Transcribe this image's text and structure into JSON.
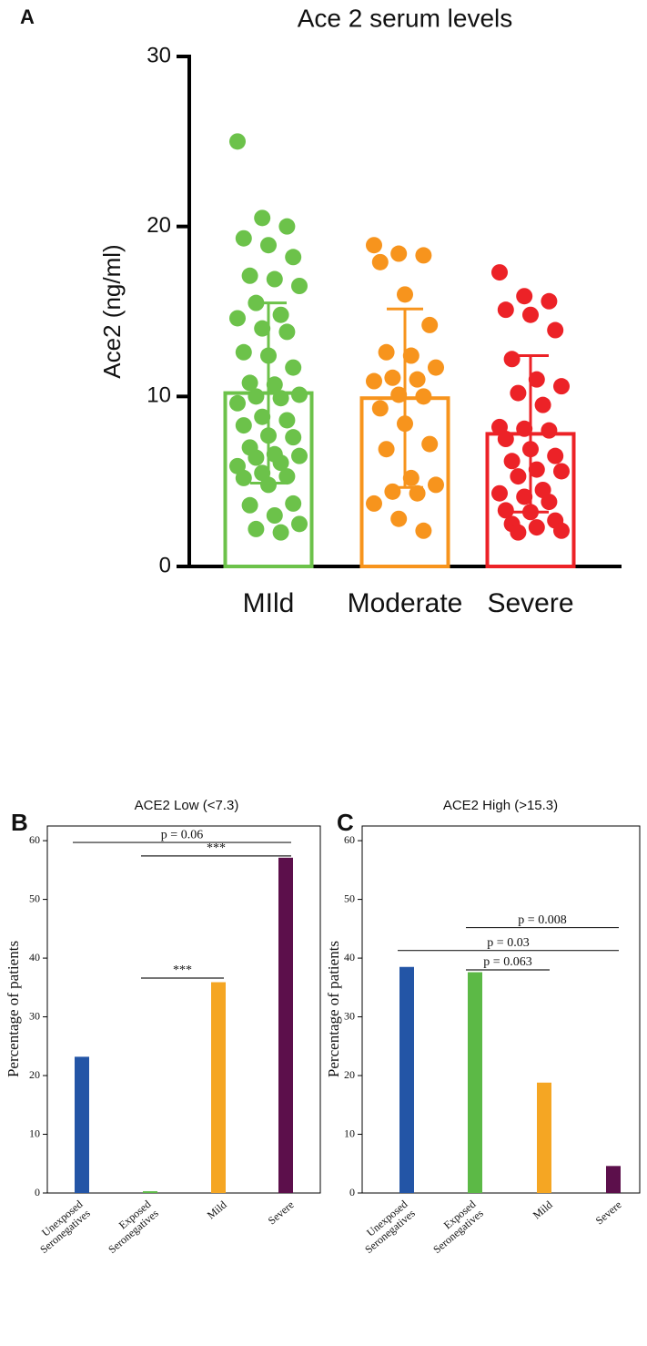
{
  "chart_data": [
    {
      "type": "bar",
      "panel_label": "A",
      "title": "Ace 2  serum levels",
      "ylabel": "Ace2  (ng/ml)",
      "categories": [
        "MIld",
        "Moderate",
        "Severe"
      ],
      "values": [
        10.2,
        9.9,
        7.8
      ],
      "errors": [
        5.3,
        5.25,
        4.6
      ],
      "colors": [
        "#6cc24a",
        "#f7941d",
        "#ec2227"
      ],
      "points": [
        [
          25,
          20.5,
          20,
          19.3,
          18.9,
          18.2,
          17.1,
          16.9,
          16.5,
          15.5,
          14.8,
          14.6,
          14.0,
          13.8,
          12.6,
          12.4,
          11.7,
          10.8,
          10.7,
          10.1,
          10.0,
          9.9,
          9.6,
          8.8,
          8.6,
          8.3,
          7.7,
          7.6,
          7.0,
          6.6,
          6.5,
          6.4,
          6.1,
          5.9,
          5.5,
          5.3,
          5.2,
          4.8,
          3.7,
          3.6,
          3.0,
          2.5,
          2.2,
          2.0
        ],
        [
          18.9,
          18.4,
          18.3,
          17.9,
          16.0,
          14.2,
          12.6,
          12.4,
          11.7,
          11.1,
          11.0,
          10.9,
          10.1,
          10.0,
          9.3,
          8.4,
          7.2,
          6.9,
          5.2,
          4.8,
          4.4,
          4.3,
          3.7,
          2.8,
          2.1
        ],
        [
          17.3,
          15.9,
          15.6,
          15.1,
          14.8,
          13.9,
          12.2,
          11.0,
          10.6,
          10.2,
          9.5,
          8.2,
          8.1,
          8.0,
          7.5,
          6.9,
          6.5,
          6.2,
          5.7,
          5.6,
          5.3,
          4.5,
          4.3,
          4.1,
          3.8,
          3.3,
          3.2,
          2.7,
          2.5,
          2.3,
          2.1,
          2.0
        ]
      ],
      "ylim": [
        0,
        30
      ],
      "yticks": [
        0,
        10,
        20,
        30
      ]
    },
    {
      "type": "bar",
      "panel_label": "B",
      "title": "ACE2 Low (<7.3)",
      "ylabel": "Percentage of patients",
      "categories": [
        "Unexposed Seronegatives",
        "Exposed Seronegatives",
        "Mild",
        "Severe"
      ],
      "values": [
        23.2,
        0.3,
        35.9,
        57.1
      ],
      "colors": [
        "#2355a6",
        "#5cb946",
        "#f5a623",
        "#5c0f4b"
      ],
      "annotations": [
        {
          "label": "p = 0.06",
          "from": 0,
          "to": 3,
          "y": 59.7
        },
        {
          "label": "***",
          "from": 1,
          "to": 3,
          "y": 57.4
        },
        {
          "label": "***",
          "from": 1,
          "to": 2,
          "y": 36.6
        }
      ],
      "ylim": [
        0,
        62.5
      ],
      "yticks": [
        0,
        10,
        20,
        30,
        40,
        50,
        60
      ]
    },
    {
      "type": "bar",
      "panel_label": "C",
      "title": "ACE2 High (>15.3)",
      "ylabel": "Percentage of patients",
      "categories": [
        "Unexposed Seronegatives",
        "Exposed Seronegatives",
        "Mild",
        "Severe"
      ],
      "values": [
        38.5,
        37.6,
        18.8,
        4.6
      ],
      "colors": [
        "#2355a6",
        "#5cb946",
        "#f5a623",
        "#5c0f4b"
      ],
      "annotations": [
        {
          "label": "p = 0.008",
          "from": 1,
          "to": 3,
          "y": 45.2
        },
        {
          "label": "p = 0.03",
          "from": 0,
          "to": 3,
          "y": 41.3
        },
        {
          "label": "p = 0.063",
          "from": 1,
          "to": 2,
          "y": 38.0
        }
      ],
      "ylim": [
        0,
        62.5
      ],
      "yticks": [
        0,
        10,
        20,
        30,
        40,
        50,
        60
      ]
    }
  ]
}
